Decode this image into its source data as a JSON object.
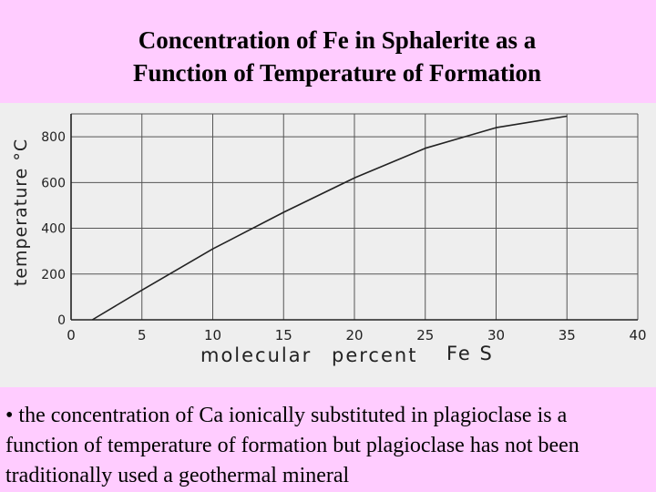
{
  "slide": {
    "title_line1": "Concentration of Fe in Sphalerite as a",
    "title_line2": "Function of Temperature of Formation",
    "bullet": "• the concentration of Ca ionically substituted in plagioclase is a function of temperature of formation but plagioclase has not been traditionally used a geothermal mineral"
  },
  "colors": {
    "slide_background": "#ffccff",
    "chart_background": "#eeeeee",
    "line": "#222222"
  },
  "chart_data": {
    "type": "line",
    "xlabel_part1": "molecular",
    "xlabel_part2": "percent",
    "xlabel_part3": "Fe S",
    "ylabel": "temperature °C",
    "xlim": [
      0,
      40
    ],
    "ylim": [
      0,
      900
    ],
    "x_ticks": [
      0,
      5,
      10,
      15,
      20,
      25,
      30,
      35,
      40
    ],
    "x_tick_labels": [
      "0",
      "5",
      "10",
      "15",
      "20",
      "25",
      "30",
      "35",
      "40"
    ],
    "y_ticks": [
      0,
      200,
      400,
      600,
      800
    ],
    "y_tick_labels": [
      "0",
      "200",
      "400",
      "600",
      "800"
    ],
    "grid": true,
    "series": [
      {
        "x": [
          1.5,
          5,
          10,
          15,
          20,
          25,
          30,
          35
        ],
        "y": [
          0,
          130,
          310,
          470,
          620,
          750,
          840,
          890
        ]
      }
    ]
  }
}
